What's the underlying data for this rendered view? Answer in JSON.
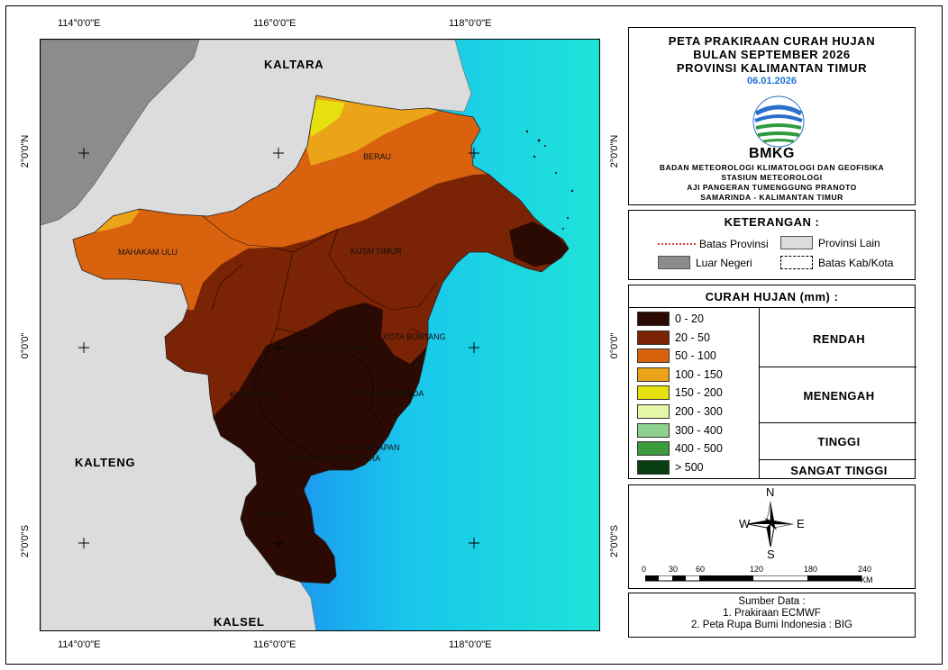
{
  "header": {
    "title_lines": [
      "PETA PRAKIRAAN CURAH HUJAN",
      "BULAN SEPTEMBER 2026",
      "PROVINSI KALIMANTAN TIMUR"
    ],
    "date": "06.01.2026",
    "logo_text": "BMKG",
    "org_lines": [
      "BADAN METEOROLOGI KLIMATOLOGI DAN GEOFISIKA",
      "STASIUN METEOROLOGI",
      "AJI PANGERAN TUMENGGUNG PRANOTO",
      "SAMARINDA - KALIMANTAN TIMUR"
    ]
  },
  "keterangan": {
    "title": "KETERANGAN :",
    "items": [
      "Batas Provinsi",
      "Provinsi Lain",
      "Luar Negeri",
      "Batas Kab/Kota"
    ]
  },
  "curah_hujan": {
    "title": "CURAH HUJAN (mm) :",
    "classes": [
      {
        "label": "0 - 20",
        "color": "#2a0a02"
      },
      {
        "label": "20 - 50",
        "color": "#7a2305"
      },
      {
        "label": "50 - 100",
        "color": "#d9620f"
      },
      {
        "label": "100 - 150",
        "color": "#eba317"
      },
      {
        "label": "150  - 200",
        "color": "#e6e00e"
      },
      {
        "label": "200 - 300",
        "color": "#e4f7a8"
      },
      {
        "label": "300 - 400",
        "color": "#8fd28f"
      },
      {
        "label": "400 - 500",
        "color": "#3c9b3c"
      },
      {
        "label": "> 500",
        "color": "#073f12"
      }
    ],
    "categories": [
      "RENDAH",
      "MENENGAH",
      "TINGGI",
      "SANGAT TINGGI"
    ]
  },
  "north_arrow": {
    "n": "N",
    "s": "S",
    "e": "E",
    "w": "W"
  },
  "scale_bar": {
    "ticks": [
      "0",
      "30",
      "60",
      "120",
      "180",
      "240"
    ],
    "unit": "KM"
  },
  "sumber": {
    "title": "Sumber Data :",
    "lines": [
      "1. Prakiraan ECMWF",
      "2. Peta Rupa Bumi Indonesia : BIG"
    ]
  },
  "map": {
    "lon_labels": [
      "114°0'0\"E",
      "116°0'0\"E",
      "118°0'0\"E"
    ],
    "lat_labels": [
      "2°0'0\"N",
      "0°0'0\"",
      "2°0'0\"S"
    ],
    "provinces": [
      "KALTARA",
      "KALTENG",
      "KALSEL"
    ],
    "districts": [
      "BERAU",
      "MAHAKAM ULU",
      "KUTAI TIMUR",
      "KUTAI KARTANEGARA",
      "KOTA BONTANG",
      "KUTAI BARAT",
      "KOTA SAMARINDA",
      "KOTA BALIKPAPAN",
      "PENAJAM PASER UTARA",
      "PASER"
    ]
  },
  "colors": {
    "sea_deep": "#1f5fe0",
    "sea_shallow": "#18d6e8",
    "other_province": "#dcdcdc",
    "foreign": "#8c8c8c"
  }
}
